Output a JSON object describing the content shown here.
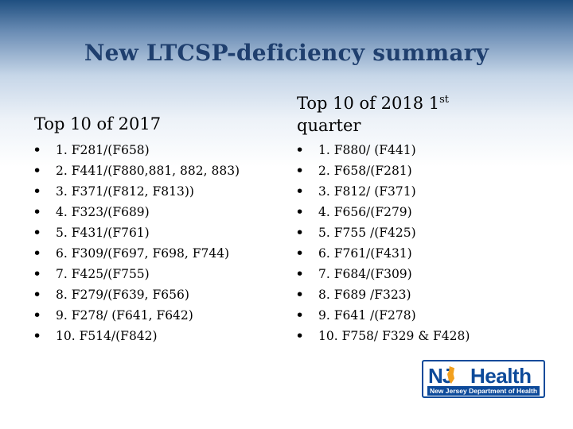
{
  "title": "New LTCSP-deficiency summary",
  "left_column": {
    "heading": "Top 10 of 2017",
    "items": [
      "1. F281/(F658)",
      "2. F441/(F880,881, 882, 883)",
      "3. F371/(F812, F813))",
      "4. F323/(F689)",
      "5. F431/(F761)",
      "6. F309/(F697, F698, F744)",
      "7. F425/(F755)",
      "8. F279/(F639, F656)",
      "9. F278/ (F641, F642)",
      "10. F514/(F842)"
    ]
  },
  "right_column": {
    "heading_main": "Top 10 of 2018 1",
    "heading_sup": "st",
    "heading_line2": "quarter",
    "items": [
      "1. F880/ (F441)",
      "2.  F658/(F281)",
      "3. F812/ (F371)",
      "4. F656/(F279)",
      "5. F755 /(F425)",
      "6. F761/(F431)",
      "7. F684/(F309)",
      "8. F689 /F323)",
      "9. F641 /(F278)",
      "10. F758/ F329 & F428)"
    ]
  },
  "logo": {
    "nj": "NJ",
    "health": "Health",
    "subtitle": "New Jersey Department of Health"
  },
  "bullet_glyph": "•"
}
